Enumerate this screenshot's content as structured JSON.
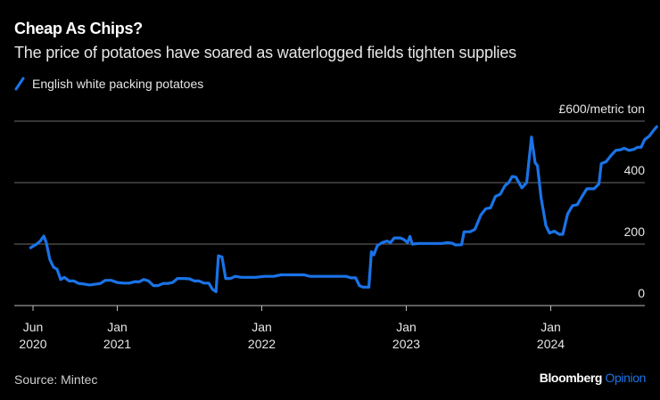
{
  "header": {
    "title": "Cheap As Chips?",
    "subtitle": "The price of potatoes have soared as waterlogged fields tighten supplies"
  },
  "legend": {
    "label": "English white packing potatoes",
    "color": "#1a73e8"
  },
  "footer": {
    "source": "Source: Mintec",
    "brand": "Bloomberg",
    "brand_accent": "Opinion"
  },
  "chart_data": {
    "type": "line",
    "title": "Cheap As Chips?",
    "subtitle": "The price of potatoes have soared as waterlogged fields tighten supplies",
    "xlabel": "",
    "ylabel": "£/metric ton",
    "ylim": [
      0,
      600
    ],
    "y_ticks": [
      {
        "value": 600,
        "label": "£600/metric ton"
      },
      {
        "value": 400,
        "label": "400"
      },
      {
        "value": 200,
        "label": "200"
      },
      {
        "value": 0,
        "label": "0"
      }
    ],
    "x_ticks": [
      {
        "t": 0,
        "label1": "Jun",
        "label2": "2020"
      },
      {
        "t": 7,
        "label1": "Jan",
        "label2": "2021"
      },
      {
        "t": 19,
        "label1": "Jan",
        "label2": "2022"
      },
      {
        "t": 31,
        "label1": "Jan",
        "label2": "2023"
      },
      {
        "t": 43,
        "label1": "Jan",
        "label2": "2024"
      }
    ],
    "x_unit": "months since Jun 2020",
    "grid": true,
    "legend_position": "top-left",
    "series": [
      {
        "name": "English white packing potatoes",
        "color": "#1a73e8",
        "points": [
          [
            -0.2,
            188
          ],
          [
            0.3,
            200
          ],
          [
            0.6,
            210
          ],
          [
            0.9,
            226
          ],
          [
            1.1,
            205
          ],
          [
            1.4,
            150
          ],
          [
            1.7,
            125
          ],
          [
            2.0,
            118
          ],
          [
            2.3,
            85
          ],
          [
            2.6,
            92
          ],
          [
            3.0,
            80
          ],
          [
            3.4,
            80
          ],
          [
            3.8,
            72
          ],
          [
            4.3,
            70
          ],
          [
            4.7,
            67
          ],
          [
            5.2,
            70
          ],
          [
            5.6,
            72
          ],
          [
            6.0,
            82
          ],
          [
            6.5,
            82
          ],
          [
            7.0,
            75
          ],
          [
            7.5,
            73
          ],
          [
            8.0,
            73
          ],
          [
            8.5,
            78
          ],
          [
            8.8,
            77
          ],
          [
            9.2,
            85
          ],
          [
            9.6,
            80
          ],
          [
            10.0,
            65
          ],
          [
            10.4,
            65
          ],
          [
            10.8,
            72
          ],
          [
            11.2,
            72
          ],
          [
            11.6,
            75
          ],
          [
            12.0,
            88
          ],
          [
            12.5,
            88
          ],
          [
            13.0,
            87
          ],
          [
            13.4,
            80
          ],
          [
            13.8,
            80
          ],
          [
            14.2,
            73
          ],
          [
            14.6,
            73
          ],
          [
            14.9,
            53
          ],
          [
            15.2,
            45
          ],
          [
            15.4,
            162
          ],
          [
            15.7,
            158
          ],
          [
            16.0,
            88
          ],
          [
            16.4,
            88
          ],
          [
            16.8,
            95
          ],
          [
            17.3,
            92
          ],
          [
            17.8,
            92
          ],
          [
            18.5,
            92
          ],
          [
            19.2,
            95
          ],
          [
            20.0,
            95
          ],
          [
            20.6,
            100
          ],
          [
            21.5,
            100
          ],
          [
            22.5,
            100
          ],
          [
            23.0,
            95
          ],
          [
            24.0,
            95
          ],
          [
            25.0,
            95
          ],
          [
            26.0,
            95
          ],
          [
            26.4,
            90
          ],
          [
            26.8,
            90
          ],
          [
            27.1,
            65
          ],
          [
            27.4,
            60
          ],
          [
            27.9,
            60
          ],
          [
            28.1,
            175
          ],
          [
            28.3,
            165
          ],
          [
            28.6,
            195
          ],
          [
            29.0,
            205
          ],
          [
            29.4,
            210
          ],
          [
            29.7,
            205
          ],
          [
            30.0,
            220
          ],
          [
            30.5,
            220
          ],
          [
            30.8,
            215
          ],
          [
            31.1,
            205
          ],
          [
            31.3,
            225
          ],
          [
            31.5,
            200
          ],
          [
            32.0,
            202
          ],
          [
            33.0,
            202
          ],
          [
            34.0,
            202
          ],
          [
            34.4,
            205
          ],
          [
            34.8,
            203
          ],
          [
            35.1,
            197
          ],
          [
            35.6,
            198
          ],
          [
            35.8,
            240
          ],
          [
            36.3,
            240
          ],
          [
            36.7,
            248
          ],
          [
            37.2,
            295
          ],
          [
            37.6,
            315
          ],
          [
            38.0,
            318
          ],
          [
            38.4,
            355
          ],
          [
            38.8,
            362
          ],
          [
            39.2,
            390
          ],
          [
            39.5,
            400
          ],
          [
            39.8,
            420
          ],
          [
            40.1,
            418
          ],
          [
            40.6,
            383
          ],
          [
            41.0,
            400
          ],
          [
            41.4,
            548
          ],
          [
            41.7,
            465
          ],
          [
            41.9,
            455
          ],
          [
            42.2,
            350
          ],
          [
            42.6,
            260
          ],
          [
            42.9,
            236
          ],
          [
            43.3,
            242
          ],
          [
            43.7,
            232
          ],
          [
            44.0,
            232
          ],
          [
            44.4,
            298
          ],
          [
            44.8,
            325
          ],
          [
            45.2,
            328
          ],
          [
            45.6,
            355
          ],
          [
            46.0,
            380
          ],
          [
            46.6,
            380
          ],
          [
            47.0,
            396
          ],
          [
            47.2,
            462
          ],
          [
            47.6,
            468
          ],
          [
            48.0,
            488
          ],
          [
            48.4,
            505
          ],
          [
            48.8,
            507
          ],
          [
            49.1,
            512
          ],
          [
            49.5,
            505
          ],
          [
            49.9,
            508
          ],
          [
            50.2,
            515
          ],
          [
            50.5,
            515
          ],
          [
            50.8,
            540
          ],
          [
            51.2,
            552
          ],
          [
            51.5,
            568
          ],
          [
            51.8,
            582
          ]
        ]
      }
    ],
    "annotations": []
  }
}
